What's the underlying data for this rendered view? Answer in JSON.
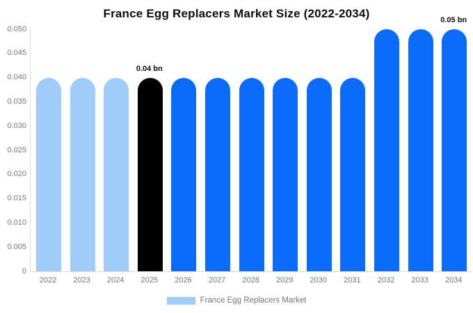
{
  "title": "France Egg Replacers Market Size (2022-2034)",
  "chart_data": {
    "type": "bar",
    "title": "France Egg Replacers Market Size (2022-2034)",
    "xlabel": "",
    "ylabel": "",
    "categories": [
      "2022",
      "2023",
      "2024",
      "2025",
      "2026",
      "2027",
      "2028",
      "2029",
      "2030",
      "2031",
      "2032",
      "2033",
      "2034"
    ],
    "series": [
      {
        "name": "France Egg Replacers Market",
        "unit": "bn",
        "values": [
          0.04,
          0.04,
          0.04,
          0.04,
          0.04,
          0.04,
          0.04,
          0.04,
          0.04,
          0.04,
          0.05,
          0.05,
          0.05
        ]
      }
    ],
    "bar_colors": [
      "#a0ccfa",
      "#a0ccfa",
      "#a0ccfa",
      "#000000",
      "#0b6cfb",
      "#0b6cfb",
      "#0b6cfb",
      "#0b6cfb",
      "#0b6cfb",
      "#0b6cfb",
      "#0b6cfb",
      "#0b6cfb",
      "#0b6cfb"
    ],
    "annotations": [
      {
        "category": "2025",
        "text": "0.04 bn"
      },
      {
        "category": "2034",
        "text": "0.05 bn"
      }
    ],
    "ylim": [
      0,
      0.05
    ],
    "y_ticks": [
      "0.050",
      "0.045",
      "0.040",
      "0.035",
      "0.030",
      "0.025",
      "0.020",
      "0.015",
      "0.010",
      "0.005",
      "0"
    ],
    "grid": false,
    "legend_position": "bottom"
  },
  "legend": {
    "label": "France Egg Replacers Market",
    "swatch_color": "#a0ccfa"
  },
  "colors": {
    "historical_bar": "#a0ccfa",
    "base_year_bar": "#000000",
    "forecast_bar": "#0b6cfb",
    "axis_line": "#d9d9d9",
    "tick_text": "#757575",
    "title_text": "#0d0d0d"
  }
}
